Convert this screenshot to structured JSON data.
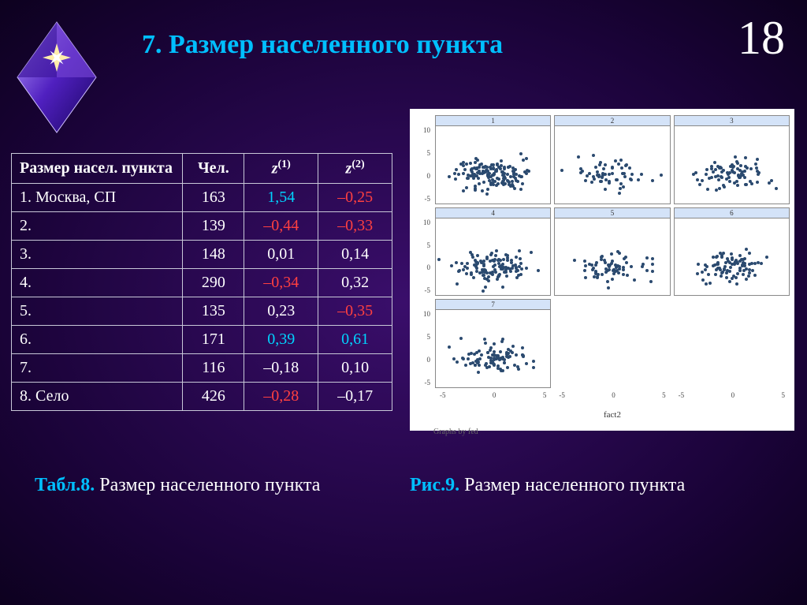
{
  "title": "7. Размер населенного пункта",
  "slide_number": "18",
  "table": {
    "headers": [
      "Размер насел. пункта",
      "Чел.",
      "z(1)",
      "z(2)"
    ],
    "rows": [
      {
        "c0": "1. Москва, СП",
        "c1": "163",
        "c2": "1,54",
        "c2_color": "#00d4ff",
        "c3": "–0,25",
        "c3_color": "#ff4040"
      },
      {
        "c0": "2.",
        "c1": "139",
        "c2": "–0,44",
        "c2_color": "#ff4040",
        "c3": "–0,33",
        "c3_color": "#ff4040"
      },
      {
        "c0": "3.",
        "c1": "148",
        "c2": "0,01",
        "c2_color": "#ffffff",
        "c3": "0,14",
        "c3_color": "#ffffff"
      },
      {
        "c0": "4.",
        "c1": "290",
        "c2": "–0,34",
        "c2_color": "#ff4040",
        "c3": "0,32",
        "c3_color": "#ffffff"
      },
      {
        "c0": "5.",
        "c1": "135",
        "c2": "0,23",
        "c2_color": "#ffffff",
        "c3": "–0,35",
        "c3_color": "#ff4040"
      },
      {
        "c0": "6.",
        "c1": "171",
        "c2": "0,39",
        "c2_color": "#00d4ff",
        "c3": "0,61",
        "c3_color": "#00d4ff"
      },
      {
        "c0": "7.",
        "c1": "116",
        "c2": "–0,18",
        "c2_color": "#ffffff",
        "c3": "0,10",
        "c3_color": "#ffffff"
      },
      {
        "c0": "8.  Село",
        "c1": "426",
        "c2": "–0,28",
        "c2_color": "#ff4040",
        "c3": "–0,17",
        "c3_color": "#ffffff"
      }
    ]
  },
  "charts": {
    "xlabel": "fact2",
    "graph_by": "Graphs by fed",
    "xlim": [
      -7,
      7
    ],
    "ylim": [
      -7,
      12
    ],
    "xticks": [
      "-5",
      "0",
      "5"
    ],
    "yticks": [
      "10",
      "5",
      "0",
      "-5"
    ],
    "point_color": "#2b4a6f",
    "bg": "#ffffff",
    "panels": [
      {
        "n": "1",
        "pts": 160
      },
      {
        "n": "2",
        "pts": 60
      },
      {
        "n": "3",
        "pts": 80
      },
      {
        "n": "4",
        "pts": 120
      },
      {
        "n": "5",
        "pts": 70
      },
      {
        "n": "6",
        "pts": 90
      },
      {
        "n": "7",
        "pts": 100
      }
    ]
  },
  "caption_left": {
    "bold": "Табл.8.",
    "rest": " Размер населенного пункта"
  },
  "caption_right": {
    "bold": "Рис.9.",
    "rest": " Размер населенного пункта"
  }
}
